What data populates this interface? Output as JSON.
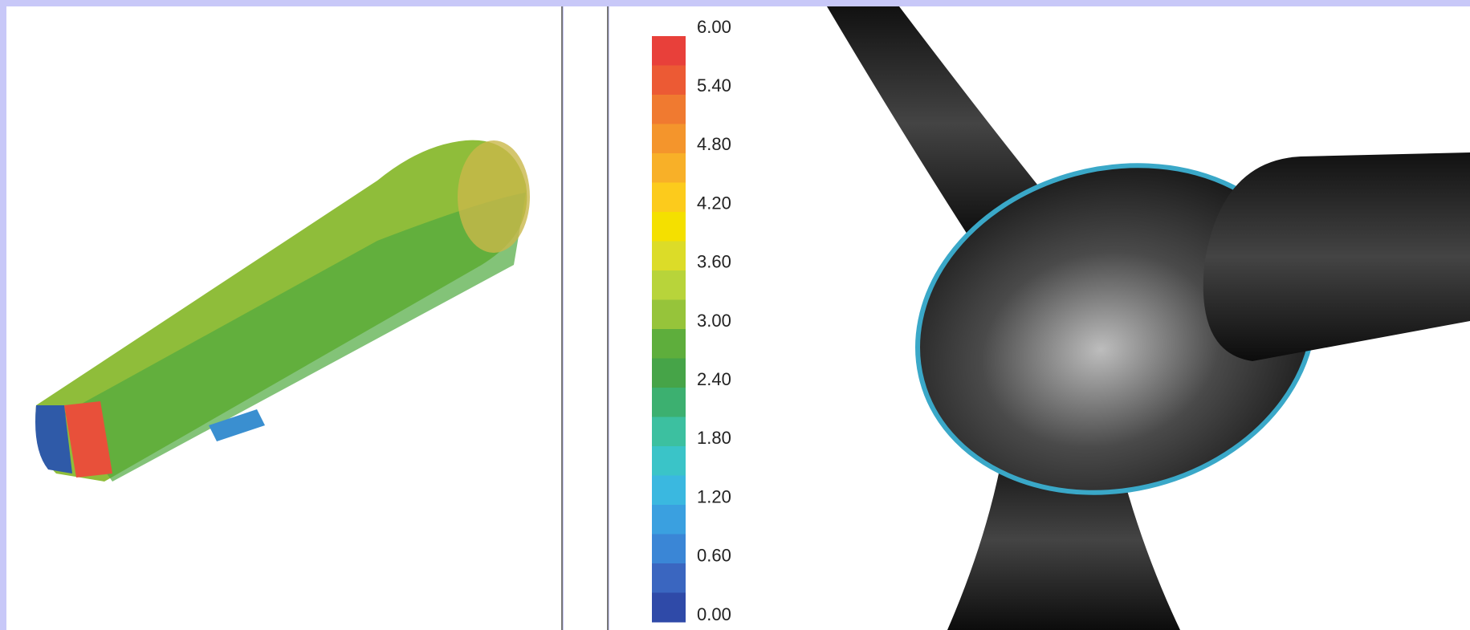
{
  "colorbar": {
    "labels": [
      "6.00",
      "5.40",
      "4.80",
      "4.20",
      "3.60",
      "3.00",
      "2.40",
      "1.80",
      "1.20",
      "0.60",
      "0.00"
    ]
  }
}
